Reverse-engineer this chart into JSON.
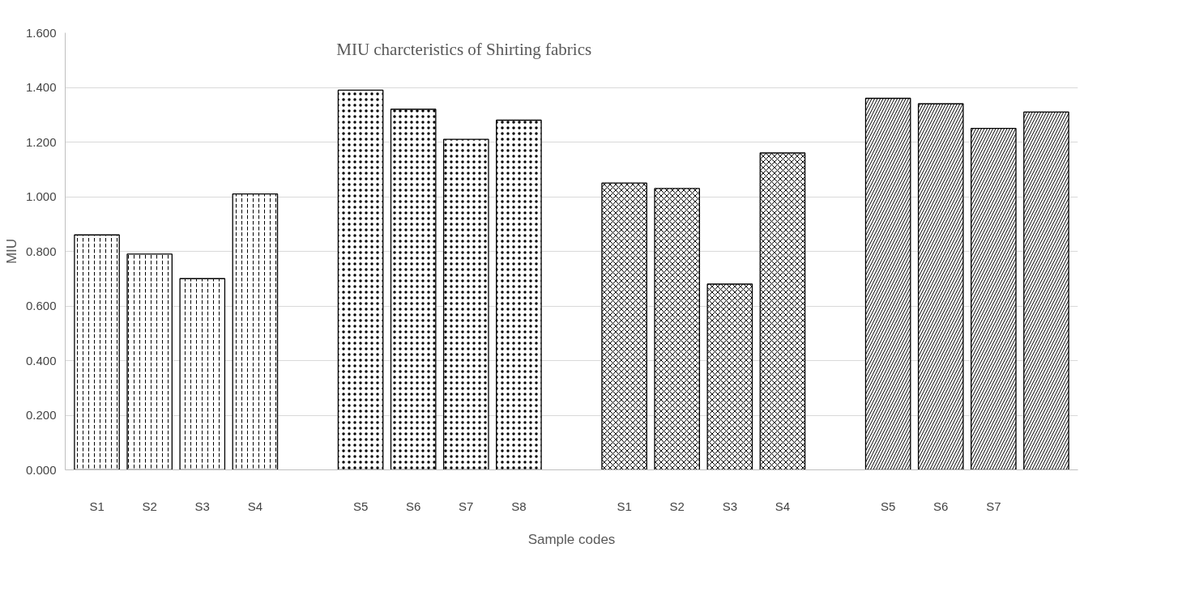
{
  "chart_data": {
    "type": "bar",
    "title": "MIU charcteristics of  Shirting fabrics",
    "xlabel": "Sample codes",
    "ylabel": "MIU",
    "categories": [
      "S1",
      "S2",
      "S3",
      "S4",
      null,
      "S5",
      "S6",
      "S7",
      "S8",
      null,
      "S1",
      "S2",
      "S3",
      "S4",
      null,
      "S5",
      "S6",
      "S7",
      null
    ],
    "series": [
      {
        "color": "#ffffff",
        "values": [
          0.86,
          0.79,
          0.7,
          1.01,
          null,
          null,
          null,
          null,
          null,
          null,
          null,
          null,
          null,
          null,
          null,
          null,
          null,
          null,
          null
        ]
      },
      {
        "color": "#ffffff",
        "values": [
          null,
          null,
          null,
          null,
          null,
          1.39,
          1.32,
          1.21,
          1.28,
          null,
          null,
          null,
          null,
          null,
          null,
          null,
          null,
          null,
          null
        ]
      },
      {
        "color": "#ffffff",
        "values": [
          null,
          null,
          null,
          null,
          null,
          null,
          null,
          null,
          null,
          null,
          1.05,
          1.03,
          0.68,
          1.16,
          null,
          null,
          null,
          null,
          null
        ]
      },
      {
        "color": "#ffffff",
        "values": [
          null,
          null,
          null,
          null,
          null,
          null,
          null,
          null,
          null,
          null,
          null,
          null,
          null,
          null,
          null,
          1.36,
          1.34,
          1.25,
          1.31
        ]
      }
    ],
    "ylim": [
      0,
      1.6
    ],
    "yticks": [
      {
        "value": 0,
        "label": "0.000"
      },
      {
        "value": 0.2,
        "label": "0.200"
      },
      {
        "value": 0.4,
        "label": "0.400"
      },
      {
        "value": 0.6,
        "label": "0.600"
      },
      {
        "value": 0.8,
        "label": "0.800"
      },
      {
        "value": 1.0,
        "label": "1.000"
      },
      {
        "value": 1.2,
        "label": "1.200"
      },
      {
        "value": 1.4,
        "label": "1.400"
      },
      {
        "value": 1.6,
        "label": "1.600"
      }
    ],
    "grid": "y"
  }
}
